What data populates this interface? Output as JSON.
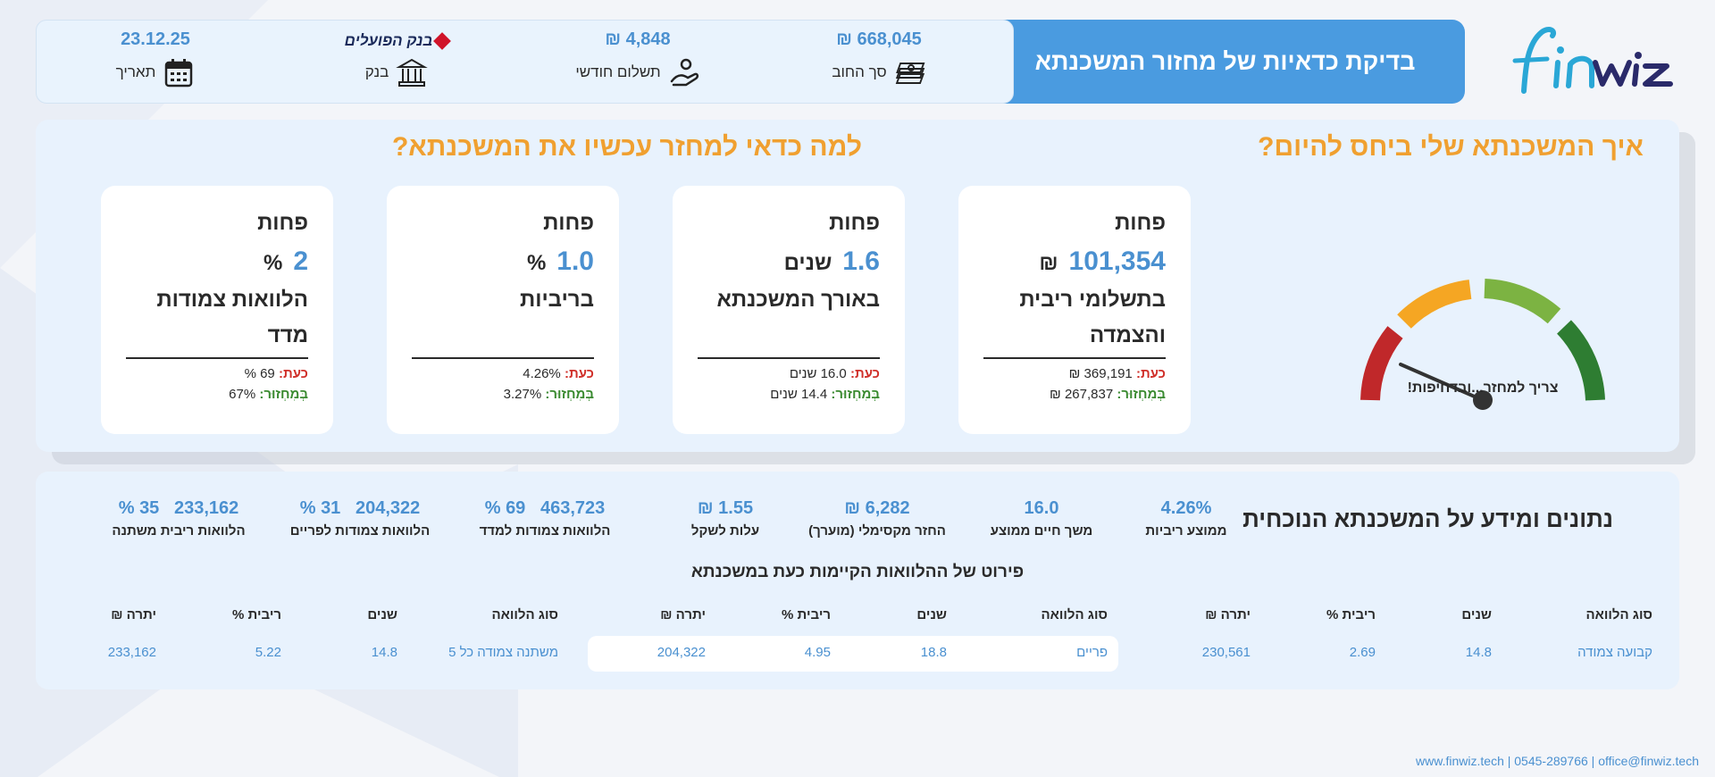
{
  "header": {
    "logo_text": "finwiz",
    "title": "בדיקת כדאיות של מחזור המשכנתא",
    "debt": {
      "value": "668,045 ₪",
      "label": "סך החוב",
      "icon": "money-stack-icon"
    },
    "monthly": {
      "value": "4,848 ₪",
      "label": "תשלום חודשי",
      "icon": "hand-coin-icon"
    },
    "bank": {
      "name": "בנק הפועלים",
      "label": "בנק",
      "icon": "bank-icon"
    },
    "date": {
      "value": "23.12.25",
      "label": "תאריך",
      "icon": "calendar-icon"
    }
  },
  "status_section": {
    "title": "איך המשכנתא שלי ביחס להיום?",
    "gauge_caption": "צריך למחזר...ובדחיפות!",
    "gauge_colors": [
      "#c0282a",
      "#f5a623",
      "#7cb342",
      "#2e7d32"
    ]
  },
  "why_section": {
    "title": "למה כדאי למחזר עכשיו את המשכנתא?",
    "now_label": "כעת:",
    "after_label": "בְּמִחְזוּר:",
    "cards": [
      {
        "less": "פחות",
        "value": "101,354",
        "unit": "₪",
        "desc": "בתשלומי ריבית והצמדה",
        "now": "369,191 ₪",
        "after": "267,837 ₪"
      },
      {
        "less": "פחות",
        "value": "1.6",
        "unit": "שנים",
        "desc": "באורך המשכנתא",
        "now": "16.0 שנים",
        "after": "14.4 שנים"
      },
      {
        "less": "פחות",
        "value": "1.0",
        "unit": "%",
        "desc": "בריביות",
        "now": "4.26%",
        "after": "3.27%"
      },
      {
        "less": "פחות",
        "value": "2",
        "unit": "%",
        "desc": "הלוואות צמודות מדד",
        "now": "69 %",
        "after": "67%"
      }
    ]
  },
  "current_info": {
    "title": "נתונים ומידע על המשכנתא הנוכחית",
    "stats": [
      {
        "value": "4.26%",
        "label": "ממוצע ריביות"
      },
      {
        "value": "16.0",
        "label": "משך חיים ממוצע"
      },
      {
        "value": "6,282 ₪",
        "label": "החזר מקסימלי (מוערך)"
      },
      {
        "value": "1.55 ₪",
        "label": "עלות לשקל"
      },
      {
        "value": "463,723   69 %",
        "label": "הלוואות צמודות למדד"
      },
      {
        "value": "204,322   31 %",
        "label": "הלוואות צמודות לפריים"
      },
      {
        "value": "233,162   35 %",
        "label": "הלוואות ריבית משתנה"
      }
    ],
    "breakdown_title": "פירוט של ההלוואות הקיימות כעת במשכנתא",
    "columns": [
      "סוג הלוואה",
      "שנים",
      "ריבית %",
      "יתרה ₪"
    ],
    "loans": [
      {
        "type": "קבועה צמודה",
        "years": "14.8",
        "rate": "2.69",
        "balance": "230,561"
      },
      {
        "type": "פריים",
        "years": "18.8",
        "rate": "4.95",
        "balance": "204,322"
      },
      {
        "type": "משתנה צמודה כל 5",
        "years": "14.8",
        "rate": "5.22",
        "balance": "233,162"
      }
    ]
  },
  "footer": "www.finwiz.tech | 0545-289766 | office@finwiz.tech"
}
